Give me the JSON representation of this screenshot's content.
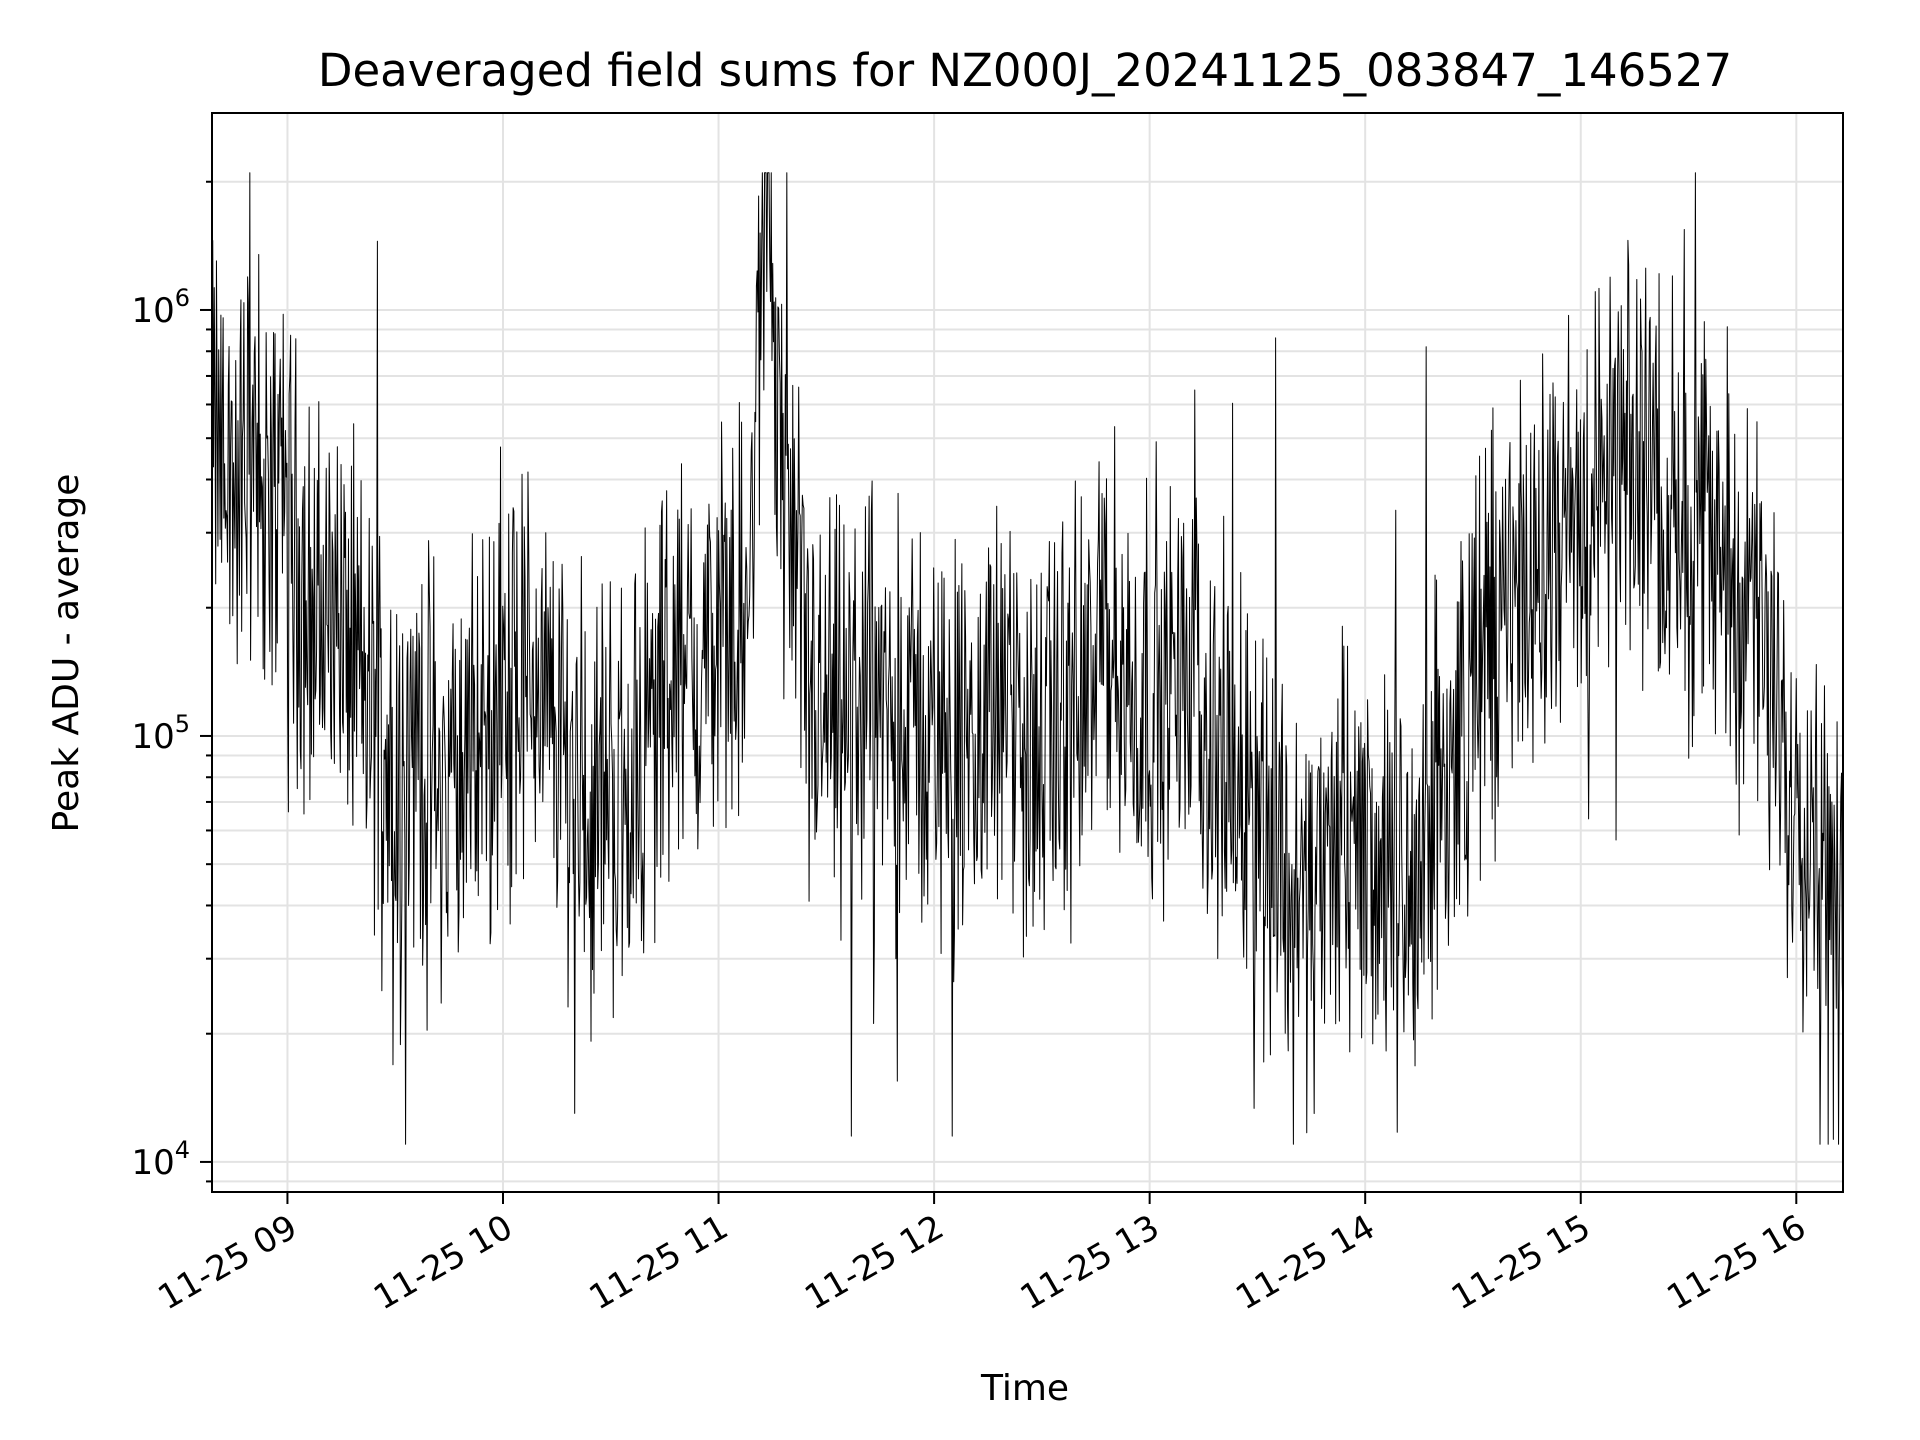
{
  "chart_data": {
    "type": "line",
    "title": "Deaveraged field sums for NZ000J_20241125_083847_146527",
    "xlabel": "Time",
    "ylabel": "Peak ADU - average",
    "yscale": "log",
    "ylim": [
      8500,
      2900000
    ],
    "xlim": [
      "2024-11-25T08:39:00",
      "2024-11-25T16:13:00"
    ],
    "grid": true,
    "line_color": "#000000",
    "grid_color": "#e3e3e3",
    "x_ticks": [
      {
        "value": "2024-11-25T09:00:00",
        "label": "11-25 09"
      },
      {
        "value": "2024-11-25T10:00:00",
        "label": "11-25 10"
      },
      {
        "value": "2024-11-25T11:00:00",
        "label": "11-25 11"
      },
      {
        "value": "2024-11-25T12:00:00",
        "label": "11-25 12"
      },
      {
        "value": "2024-11-25T13:00:00",
        "label": "11-25 13"
      },
      {
        "value": "2024-11-25T14:00:00",
        "label": "11-25 14"
      },
      {
        "value": "2024-11-25T15:00:00",
        "label": "11-25 15"
      },
      {
        "value": "2024-11-25T16:00:00",
        "label": "11-25 16"
      }
    ],
    "y_ticks": [
      {
        "value": 10000,
        "base": "10",
        "exp": "4"
      },
      {
        "value": 100000,
        "base": "10",
        "exp": "5"
      },
      {
        "value": 1000000,
        "base": "10",
        "exp": "6"
      }
    ],
    "series": [
      {
        "x": [
          "2024-11-25T08:39:00",
          "2024-11-25T08:42:00",
          "2024-11-25T08:45:00",
          "2024-11-25T08:48:00",
          "2024-11-25T08:51:00",
          "2024-11-25T08:53:00",
          "2024-11-25T08:55:00",
          "2024-11-25T08:58:00",
          "2024-11-25T09:01:00",
          "2024-11-25T09:04:00",
          "2024-11-25T09:08:00",
          "2024-11-25T09:12:00",
          "2024-11-25T09:17:00",
          "2024-11-25T09:22:00",
          "2024-11-25T09:27:00",
          "2024-11-25T09:32:00",
          "2024-11-25T09:38:00",
          "2024-11-25T09:43:00",
          "2024-11-25T09:48:00",
          "2024-11-25T09:53:00",
          "2024-11-25T09:58:00",
          "2024-11-25T10:03:00",
          "2024-11-25T10:08:00",
          "2024-11-25T10:13:00",
          "2024-11-25T10:18:00",
          "2024-11-25T10:23:00",
          "2024-11-25T10:28:00",
          "2024-11-25T10:33:00",
          "2024-11-25T10:38:00",
          "2024-11-25T10:43:00",
          "2024-11-25T10:48:00",
          "2024-11-25T10:53:00",
          "2024-11-25T10:58:00",
          "2024-11-25T11:03:00",
          "2024-11-25T11:08:00",
          "2024-11-25T11:13:00",
          "2024-11-25T11:16:00",
          "2024-11-25T11:18:00",
          "2024-11-25T11:21:00",
          "2024-11-25T11:25:00",
          "2024-11-25T11:30:00",
          "2024-11-25T11:35:00",
          "2024-11-25T11:40:00",
          "2024-11-25T11:45:00",
          "2024-11-25T11:50:00",
          "2024-11-25T11:55:00",
          "2024-11-25T12:00:00",
          "2024-11-25T12:05:00",
          "2024-11-25T12:10:00",
          "2024-11-25T12:15:00",
          "2024-11-25T12:20:00",
          "2024-11-25T12:25:00",
          "2024-11-25T12:30:00",
          "2024-11-25T12:35:00",
          "2024-11-25T12:40:00",
          "2024-11-25T12:45:00",
          "2024-11-25T12:50:00",
          "2024-11-25T12:55:00",
          "2024-11-25T13:00:00",
          "2024-11-25T13:05:00",
          "2024-11-25T13:10:00",
          "2024-11-25T13:15:00",
          "2024-11-25T13:20:00",
          "2024-11-25T13:25:00",
          "2024-11-25T13:30:00",
          "2024-11-25T13:35:00",
          "2024-11-25T13:40:00",
          "2024-11-25T13:45:00",
          "2024-11-25T13:50:00",
          "2024-11-25T13:55:00",
          "2024-11-25T14:00:00",
          "2024-11-25T14:05:00",
          "2024-11-25T14:10:00",
          "2024-11-25T14:15:00",
          "2024-11-25T14:20:00",
          "2024-11-25T14:25:00",
          "2024-11-25T14:30:00",
          "2024-11-25T14:35:00",
          "2024-11-25T14:40:00",
          "2024-11-25T14:45:00",
          "2024-11-25T14:50:00",
          "2024-11-25T14:55:00",
          "2024-11-25T15:00:00",
          "2024-11-25T15:05:00",
          "2024-11-25T15:10:00",
          "2024-11-25T15:15:00",
          "2024-11-25T15:20:00",
          "2024-11-25T15:25:00",
          "2024-11-25T15:30:00",
          "2024-11-25T15:35:00",
          "2024-11-25T15:40:00",
          "2024-11-25T15:45:00",
          "2024-11-25T15:50:00",
          "2024-11-25T15:55:00",
          "2024-11-25T16:00:00",
          "2024-11-25T16:05:00",
          "2024-11-25T16:10:00",
          "2024-11-25T16:13:00"
        ],
        "y": [
          520000,
          430000,
          380000,
          420000,
          460000,
          350000,
          300000,
          480000,
          320000,
          230000,
          180000,
          200000,
          170000,
          120000,
          95000,
          80000,
          100000,
          70000,
          85000,
          95000,
          110000,
          130000,
          150000,
          105000,
          90000,
          75000,
          80000,
          70000,
          85000,
          110000,
          150000,
          130000,
          160000,
          200000,
          170000,
          1600000,
          900000,
          400000,
          230000,
          120000,
          110000,
          100000,
          120000,
          110000,
          95000,
          110000,
          100000,
          95000,
          80000,
          105000,
          110000,
          95000,
          85000,
          100000,
          120000,
          150000,
          160000,
          120000,
          140000,
          130000,
          120000,
          110000,
          90000,
          75000,
          70000,
          55000,
          45000,
          40000,
          50000,
          55000,
          60000,
          45000,
          40000,
          55000,
          70000,
          90000,
          130000,
          180000,
          210000,
          230000,
          250000,
          300000,
          350000,
          380000,
          420000,
          400000,
          480000,
          350000,
          330000,
          300000,
          260000,
          220000,
          160000,
          100000,
          80000,
          60000,
          40000,
          25000
        ]
      }
    ],
    "spikes": [
      {
        "x": "2024-11-25T08:52:00",
        "y": 1350000
      },
      {
        "x": "2024-11-25T09:25:00",
        "y": 1450000
      },
      {
        "x": "2024-11-25T11:19:00",
        "y": 2100000
      },
      {
        "x": "2024-11-25T13:35:00",
        "y": 860000
      },
      {
        "x": "2024-11-25T14:17:00",
        "y": 820000
      },
      {
        "x": "2024-11-25T15:32:00",
        "y": 2100000
      },
      {
        "x": "2024-11-25T13:40:00",
        "y": 11000
      },
      {
        "x": "2024-11-25T11:37:00",
        "y": 11500
      },
      {
        "x": "2024-11-25T12:05:00",
        "y": 11500
      },
      {
        "x": "2024-11-25T10:20:00",
        "y": 13000
      }
    ]
  }
}
